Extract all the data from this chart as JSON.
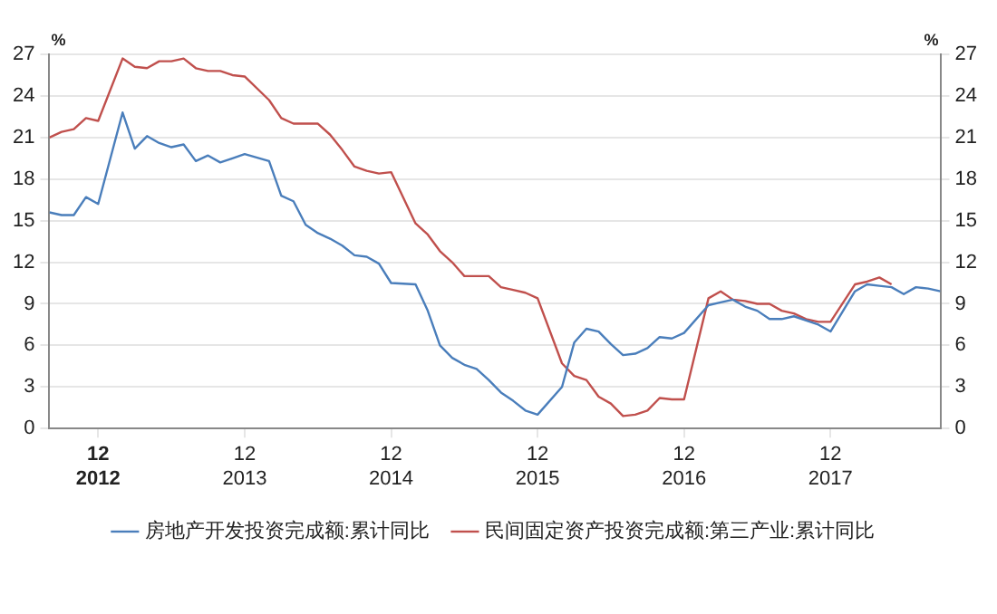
{
  "chart_data": {
    "type": "line",
    "ylabel": "%",
    "y2label": "%",
    "xlim": [
      "2012-08",
      "2018-09"
    ],
    "xticks": [
      {
        "value": "2012-12",
        "label": "12\n2012"
      },
      {
        "value": "2013-12",
        "label": "12\n2013"
      },
      {
        "value": "2014-12",
        "label": "12\n2014"
      },
      {
        "value": "2015-12",
        "label": "12\n2015"
      },
      {
        "value": "2016-12",
        "label": "12\n2016"
      },
      {
        "value": "2017-12",
        "label": "12\n2017"
      }
    ],
    "ylim": [
      0,
      27
    ],
    "yticks": [
      0,
      3,
      6,
      9,
      12,
      15,
      18,
      21,
      24,
      27
    ],
    "y2lim": [
      0,
      27
    ],
    "y2ticks": [
      0,
      3,
      6,
      9,
      12,
      15,
      18,
      21,
      24,
      27
    ],
    "grid": "y",
    "legend": "bottom",
    "marker": "none",
    "line_style": "solid",
    "series": [
      {
        "name": "房地产开发投资完成额:累计同比",
        "color": "#4a7ebb",
        "x": [
          "2012-08",
          "2012-09",
          "2012-10",
          "2012-11",
          "2012-12",
          "2013-02",
          "2013-03",
          "2013-04",
          "2013-05",
          "2013-06",
          "2013-07",
          "2013-08",
          "2013-09",
          "2013-10",
          "2013-11",
          "2013-12",
          "2014-02",
          "2014-03",
          "2014-04",
          "2014-05",
          "2014-06",
          "2014-07",
          "2014-08",
          "2014-09",
          "2014-10",
          "2014-11",
          "2014-12",
          "2015-02",
          "2015-03",
          "2015-04",
          "2015-05",
          "2015-06",
          "2015-07",
          "2015-08",
          "2015-09",
          "2015-10",
          "2015-11",
          "2015-12",
          "2016-02",
          "2016-03",
          "2016-04",
          "2016-05",
          "2016-06",
          "2016-07",
          "2016-08",
          "2016-09",
          "2016-10",
          "2016-11",
          "2016-12",
          "2017-02",
          "2017-03",
          "2017-04",
          "2017-05",
          "2017-06",
          "2017-07",
          "2017-08",
          "2017-09",
          "2017-10",
          "2017-11",
          "2017-12",
          "2018-02",
          "2018-03",
          "2018-04",
          "2018-05",
          "2018-06",
          "2018-07",
          "2018-08",
          "2018-09"
        ],
        "values": [
          15.6,
          15.4,
          15.4,
          16.7,
          16.2,
          22.8,
          20.2,
          21.1,
          20.6,
          20.3,
          20.5,
          19.3,
          19.7,
          19.2,
          19.5,
          19.8,
          19.3,
          16.8,
          16.4,
          14.7,
          14.1,
          13.7,
          13.2,
          12.5,
          12.4,
          11.9,
          10.5,
          10.4,
          8.5,
          6.0,
          5.1,
          4.6,
          4.3,
          3.5,
          2.6,
          2.0,
          1.3,
          1.0,
          3.0,
          6.2,
          7.2,
          7.0,
          6.1,
          5.3,
          5.4,
          5.8,
          6.6,
          6.5,
          6.9,
          8.9,
          9.1,
          9.3,
          8.8,
          8.5,
          7.9,
          7.9,
          8.1,
          7.8,
          7.5,
          7.0,
          9.9,
          10.4,
          10.3,
          10.2,
          9.7,
          10.2,
          10.1,
          9.9
        ]
      },
      {
        "name": "民间固定资产投资完成额:第三产业:累计同比",
        "color": "#c0504d",
        "x": [
          "2012-08",
          "2012-09",
          "2012-10",
          "2012-11",
          "2012-12",
          "2013-02",
          "2013-03",
          "2013-04",
          "2013-05",
          "2013-06",
          "2013-07",
          "2013-08",
          "2013-09",
          "2013-10",
          "2013-11",
          "2013-12",
          "2014-02",
          "2014-03",
          "2014-04",
          "2014-05",
          "2014-06",
          "2014-07",
          "2014-08",
          "2014-09",
          "2014-10",
          "2014-11",
          "2014-12",
          "2015-02",
          "2015-03",
          "2015-04",
          "2015-05",
          "2015-06",
          "2015-07",
          "2015-08",
          "2015-09",
          "2015-10",
          "2015-11",
          "2015-12",
          "2016-02",
          "2016-03",
          "2016-04",
          "2016-05",
          "2016-06",
          "2016-07",
          "2016-08",
          "2016-09",
          "2016-10",
          "2016-11",
          "2016-12",
          "2017-02",
          "2017-03",
          "2017-04",
          "2017-05",
          "2017-06",
          "2017-07",
          "2017-08",
          "2017-09",
          "2017-10",
          "2017-11",
          "2017-12",
          "2018-02",
          "2018-03",
          "2018-04",
          "2018-05"
        ],
        "values": [
          21.0,
          21.4,
          21.6,
          22.4,
          22.2,
          26.7,
          26.1,
          26.0,
          26.5,
          26.5,
          26.7,
          26.0,
          25.8,
          25.8,
          25.5,
          25.4,
          23.7,
          22.4,
          22.0,
          22.0,
          22.0,
          21.2,
          20.1,
          18.9,
          18.6,
          18.4,
          18.5,
          14.8,
          14.0,
          12.8,
          12.0,
          11.0,
          11.0,
          11.0,
          10.2,
          10.0,
          9.8,
          9.4,
          4.7,
          3.8,
          3.5,
          2.3,
          1.8,
          0.9,
          1.0,
          1.3,
          2.2,
          2.1,
          2.1,
          9.4,
          9.9,
          9.3,
          9.2,
          9.0,
          9.0,
          8.5,
          8.3,
          7.9,
          7.7,
          7.7,
          10.4,
          10.6,
          10.9,
          10.4
        ]
      }
    ]
  }
}
